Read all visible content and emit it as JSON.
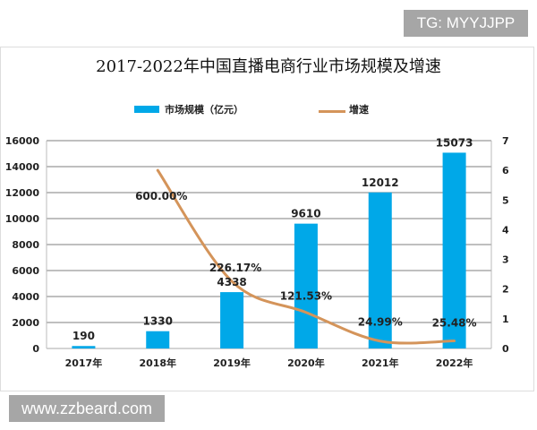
{
  "watermarks": {
    "top": "TG: MYYJJPP",
    "bottom": "www.zzbeard.com"
  },
  "chart_data": {
    "type": "bar+line",
    "title": "2017-2022年中国直播电商行业市场规模及增速",
    "categories": [
      "2017年",
      "2018年",
      "2019年",
      "2020年",
      "2021年",
      "2022年"
    ],
    "series": [
      {
        "name": "市场规模（亿元）",
        "type": "bar",
        "axis": "left",
        "color": "#00a8e8",
        "values": [
          190,
          1330,
          4338,
          9610,
          12012,
          15073
        ],
        "labels": [
          "190",
          "1330",
          "4338",
          "9610",
          "12012",
          "15073"
        ]
      },
      {
        "name": "增速",
        "type": "line",
        "axis": "right",
        "color": "#d4945a",
        "values": [
          null,
          6.0,
          2.2617,
          1.2153,
          0.2499,
          0.2548
        ],
        "labels": [
          "",
          "600.00%",
          "226.17%",
          "121.53%",
          "24.99%",
          "25.48%"
        ]
      }
    ],
    "y_left": {
      "range": [
        0,
        16000
      ],
      "ticks": [
        0,
        2000,
        4000,
        6000,
        8000,
        10000,
        12000,
        14000,
        16000
      ]
    },
    "y_right": {
      "range": [
        0,
        7
      ],
      "ticks": [
        0,
        1,
        2,
        3,
        4,
        5,
        6,
        7
      ]
    },
    "grid": true,
    "legend": "top"
  }
}
